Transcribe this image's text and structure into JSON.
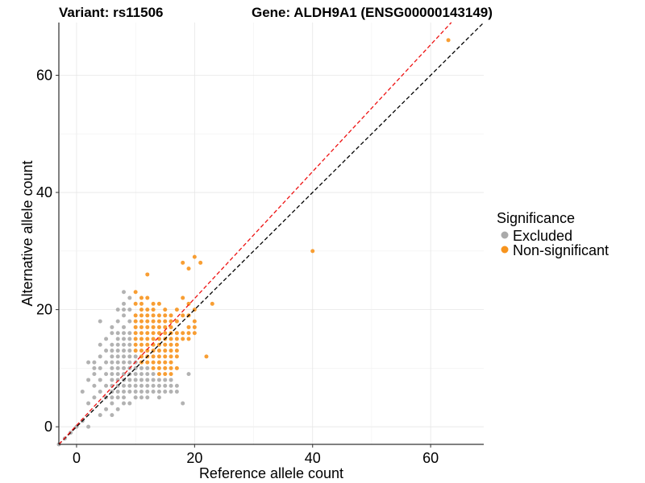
{
  "chart_data": {
    "type": "scatter",
    "title_left": "Variant: rs11506",
    "title_right": "Gene: ALDH9A1 (ENSG00000143149)",
    "xlabel": "Reference allele count",
    "ylabel": "Alternative allele count",
    "xlim": [
      -3,
      69
    ],
    "ylim": [
      -3,
      69
    ],
    "xticks": [
      0,
      20,
      40,
      60
    ],
    "yticks": [
      0,
      20,
      40,
      60
    ],
    "grid": true,
    "legend": {
      "title": "Significance",
      "position": "right",
      "entries": [
        {
          "label": "Excluded",
          "color": "#aaaaaa"
        },
        {
          "label": "Non-significant",
          "color": "#f7941d"
        }
      ]
    },
    "reference_lines": [
      {
        "name": "identity",
        "color": "#000000",
        "style": "dashed",
        "x": [
          -3,
          69
        ],
        "y": [
          -3,
          69
        ]
      },
      {
        "name": "fit",
        "color": "#ee1111",
        "style": "dashed",
        "x": [
          -3,
          63.5
        ],
        "y": [
          -3,
          69
        ]
      }
    ],
    "series": [
      {
        "name": "Excluded",
        "color": "#aaaaaa",
        "points": [
          [
            -3,
            -3
          ],
          [
            -2,
            -2
          ],
          [
            -1,
            -1
          ],
          [
            0,
            0
          ],
          [
            1,
            1
          ],
          [
            2,
            0
          ],
          [
            1,
            6
          ],
          [
            2,
            4
          ],
          [
            2,
            8
          ],
          [
            2,
            11
          ],
          [
            3,
            5
          ],
          [
            3,
            7
          ],
          [
            3,
            9
          ],
          [
            3,
            10
          ],
          [
            3,
            11
          ],
          [
            4,
            2
          ],
          [
            4,
            6
          ],
          [
            4,
            8
          ],
          [
            4,
            10
          ],
          [
            4,
            12
          ],
          [
            4,
            14
          ],
          [
            4,
            18
          ],
          [
            5,
            3
          ],
          [
            5,
            5
          ],
          [
            5,
            7
          ],
          [
            5,
            9
          ],
          [
            5,
            11
          ],
          [
            5,
            13
          ],
          [
            5,
            15
          ],
          [
            6,
            2
          ],
          [
            6,
            4
          ],
          [
            6,
            5
          ],
          [
            6,
            6
          ],
          [
            6,
            7
          ],
          [
            6,
            8
          ],
          [
            6,
            9
          ],
          [
            6,
            10
          ],
          [
            6,
            11
          ],
          [
            6,
            12
          ],
          [
            6,
            13
          ],
          [
            6,
            14
          ],
          [
            6,
            16
          ],
          [
            6,
            17
          ],
          [
            7,
            3
          ],
          [
            7,
            5
          ],
          [
            7,
            6
          ],
          [
            7,
            7
          ],
          [
            7,
            8
          ],
          [
            7,
            9
          ],
          [
            7,
            10
          ],
          [
            7,
            11
          ],
          [
            7,
            12
          ],
          [
            7,
            13
          ],
          [
            7,
            14
          ],
          [
            7,
            15
          ],
          [
            7,
            16
          ],
          [
            7,
            18
          ],
          [
            7,
            20
          ],
          [
            8,
            4
          ],
          [
            8,
            5
          ],
          [
            8,
            6
          ],
          [
            8,
            7
          ],
          [
            8,
            8
          ],
          [
            8,
            9
          ],
          [
            8,
            10
          ],
          [
            8,
            11
          ],
          [
            8,
            12
          ],
          [
            8,
            13
          ],
          [
            8,
            14
          ],
          [
            8,
            15
          ],
          [
            8,
            16
          ],
          [
            8,
            17
          ],
          [
            8,
            19
          ],
          [
            8,
            20
          ],
          [
            8,
            21
          ],
          [
            8,
            23
          ],
          [
            9,
            4
          ],
          [
            9,
            6
          ],
          [
            9,
            7
          ],
          [
            9,
            8
          ],
          [
            9,
            9
          ],
          [
            9,
            10
          ],
          [
            9,
            11
          ],
          [
            9,
            12
          ],
          [
            9,
            13
          ],
          [
            9,
            14
          ],
          [
            9,
            15
          ],
          [
            9,
            16
          ],
          [
            9,
            18
          ],
          [
            9,
            20
          ],
          [
            9,
            22
          ],
          [
            10,
            5
          ],
          [
            10,
            6
          ],
          [
            10,
            7
          ],
          [
            10,
            8
          ],
          [
            10,
            9
          ],
          [
            10,
            10
          ],
          [
            10,
            11
          ],
          [
            10,
            12
          ],
          [
            11,
            5
          ],
          [
            11,
            6
          ],
          [
            11,
            7
          ],
          [
            11,
            8
          ],
          [
            11,
            9
          ],
          [
            11,
            10
          ],
          [
            12,
            5
          ],
          [
            12,
            6
          ],
          [
            12,
            7
          ],
          [
            12,
            8
          ],
          [
            12,
            9
          ],
          [
            12,
            10
          ],
          [
            13,
            6
          ],
          [
            13,
            7
          ],
          [
            13,
            8
          ],
          [
            13,
            9
          ],
          [
            14,
            5
          ],
          [
            14,
            6
          ],
          [
            14,
            7
          ],
          [
            14,
            8
          ],
          [
            15,
            6
          ],
          [
            15,
            7
          ],
          [
            15,
            8
          ],
          [
            16,
            6
          ],
          [
            16,
            7
          ],
          [
            16,
            8
          ],
          [
            17,
            6
          ],
          [
            17,
            7
          ],
          [
            18,
            4
          ],
          [
            19,
            9
          ]
        ]
      },
      {
        "name": "Non-significant",
        "color": "#f7941d",
        "points": [
          [
            10,
            13
          ],
          [
            10,
            14
          ],
          [
            10,
            15
          ],
          [
            10,
            16
          ],
          [
            10,
            17
          ],
          [
            10,
            18
          ],
          [
            10,
            19
          ],
          [
            10,
            21
          ],
          [
            10,
            23
          ],
          [
            11,
            11
          ],
          [
            11,
            12
          ],
          [
            11,
            13
          ],
          [
            11,
            14
          ],
          [
            11,
            15
          ],
          [
            11,
            16
          ],
          [
            11,
            17
          ],
          [
            11,
            18
          ],
          [
            11,
            19
          ],
          [
            11,
            20
          ],
          [
            11,
            21
          ],
          [
            11,
            22
          ],
          [
            12,
            11
          ],
          [
            12,
            12
          ],
          [
            12,
            13
          ],
          [
            12,
            14
          ],
          [
            12,
            15
          ],
          [
            12,
            16
          ],
          [
            12,
            17
          ],
          [
            12,
            18
          ],
          [
            12,
            19
          ],
          [
            12,
            20
          ],
          [
            12,
            22
          ],
          [
            12,
            26
          ],
          [
            13,
            10
          ],
          [
            13,
            11
          ],
          [
            13,
            12
          ],
          [
            13,
            13
          ],
          [
            13,
            14
          ],
          [
            13,
            15
          ],
          [
            13,
            16
          ],
          [
            13,
            17
          ],
          [
            13,
            18
          ],
          [
            13,
            19
          ],
          [
            13,
            20
          ],
          [
            13,
            21
          ],
          [
            14,
            9
          ],
          [
            14,
            10
          ],
          [
            14,
            11
          ],
          [
            14,
            12
          ],
          [
            14,
            13
          ],
          [
            14,
            14
          ],
          [
            14,
            15
          ],
          [
            14,
            16
          ],
          [
            14,
            17
          ],
          [
            14,
            18
          ],
          [
            14,
            19
          ],
          [
            14,
            21
          ],
          [
            15,
            9
          ],
          [
            15,
            10
          ],
          [
            15,
            11
          ],
          [
            15,
            12
          ],
          [
            15,
            13
          ],
          [
            15,
            14
          ],
          [
            15,
            15
          ],
          [
            15,
            16
          ],
          [
            15,
            17
          ],
          [
            15,
            18
          ],
          [
            15,
            19
          ],
          [
            15,
            20
          ],
          [
            16,
            9
          ],
          [
            16,
            10
          ],
          [
            16,
            11
          ],
          [
            16,
            12
          ],
          [
            16,
            13
          ],
          [
            16,
            14
          ],
          [
            16,
            15
          ],
          [
            16,
            16
          ],
          [
            16,
            17
          ],
          [
            16,
            18
          ],
          [
            16,
            19
          ],
          [
            17,
            10
          ],
          [
            17,
            12
          ],
          [
            17,
            13
          ],
          [
            17,
            14
          ],
          [
            17,
            15
          ],
          [
            17,
            16
          ],
          [
            17,
            18
          ],
          [
            17,
            20
          ],
          [
            18,
            15
          ],
          [
            18,
            16
          ],
          [
            18,
            19
          ],
          [
            18,
            22
          ],
          [
            18,
            28
          ],
          [
            19,
            15
          ],
          [
            19,
            16
          ],
          [
            19,
            17
          ],
          [
            19,
            19
          ],
          [
            19,
            21
          ],
          [
            19,
            27
          ],
          [
            20,
            16
          ],
          [
            20,
            17
          ],
          [
            20,
            18
          ],
          [
            20,
            20
          ],
          [
            20,
            29
          ],
          [
            21,
            28
          ],
          [
            22,
            12
          ],
          [
            23,
            21
          ],
          [
            40,
            30
          ],
          [
            63,
            66
          ]
        ]
      }
    ]
  }
}
